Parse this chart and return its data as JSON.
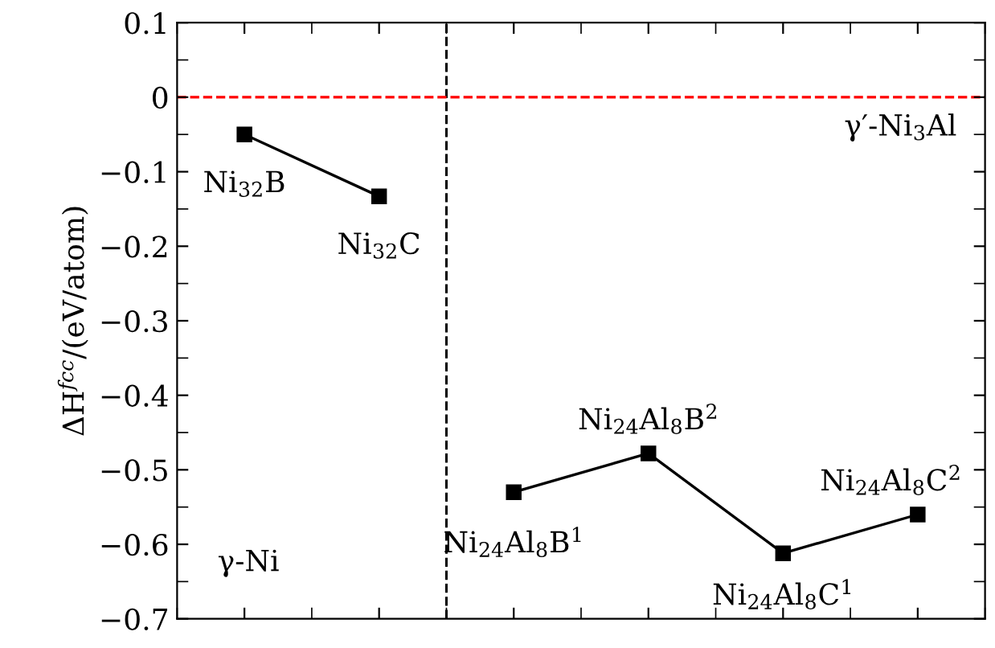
{
  "chart_data": {
    "type": "line",
    "ylabel": "ΔH$^{fcc}$/(eV/atom)",
    "categories": [
      null,
      null,
      null,
      null,
      null,
      null
    ],
    "series": [
      {
        "color": "#000000",
        "values": [
          -0.05,
          -0.133,
          null,
          null,
          null,
          null
        ]
      },
      {
        "color": "#000000",
        "values": [
          null,
          null,
          -0.53,
          -0.478,
          -0.612,
          -0.56
        ]
      }
    ],
    "marker": "square",
    "line_style": "solid",
    "ylim": [
      -0.7,
      0.1
    ],
    "yticks": [
      {
        "value": -0.7,
        "label": "−0.7"
      },
      {
        "value": -0.6,
        "label": "−0.6"
      },
      {
        "value": -0.5,
        "label": "−0.5"
      },
      {
        "value": -0.4,
        "label": "−0.4"
      },
      {
        "value": -0.3,
        "label": "−0.3"
      },
      {
        "value": -0.2,
        "label": "−0.2"
      },
      {
        "value": -0.1,
        "label": "−0.1"
      },
      0,
      0.1
    ],
    "tick_labels": "y",
    "grid": false,
    "legend": false,
    "ref_lines": [
      {
        "axis": "y",
        "value": 0,
        "color": "#ff0000",
        "line_style": "dashed"
      }
    ],
    "annotations": [
      {
        "text": "Ni$_{32}$B",
        "y": -0.05
      },
      {
        "text": "Ni$_{32}$C",
        "y": -0.133
      },
      {
        "text": "Ni$_{24}$Al$_{8}$B$^{1}$",
        "y": -0.53
      },
      {
        "text": "Ni$_{24}$Al$_{8}$B$^{2}$",
        "y": -0.478
      },
      {
        "text": "Ni$_{24}$Al$_{8}$C$^{1}$",
        "y": -0.612
      },
      {
        "text": "Ni$_{24}$Al$_{8}$C$^{2}$",
        "y": -0.56
      },
      "γ′-Ni$_{3}$Al",
      "γ-Ni"
    ]
  }
}
